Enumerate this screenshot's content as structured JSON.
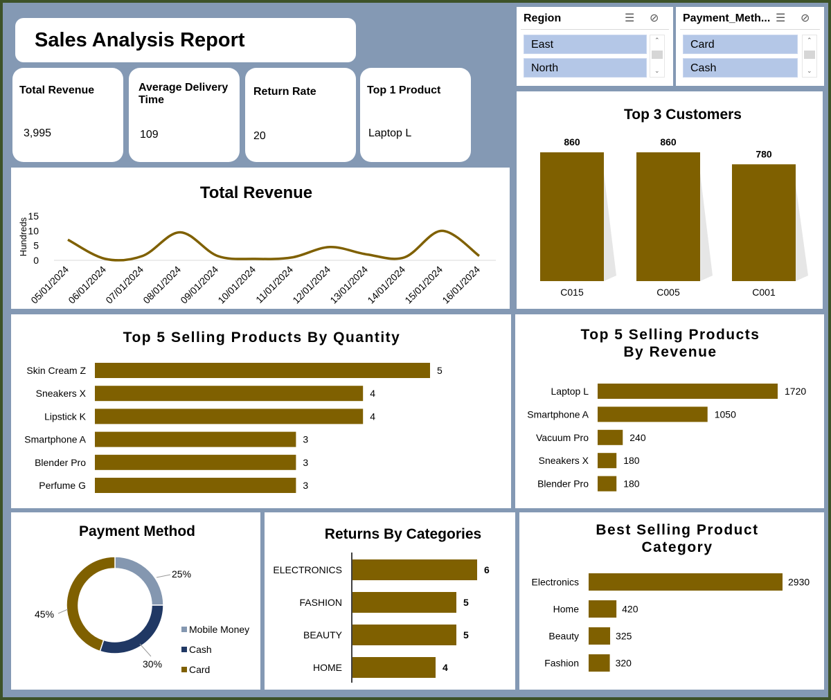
{
  "report_title": "Sales Analysis Report",
  "kpis": [
    {
      "label": "Total Revenue",
      "value": "3,995"
    },
    {
      "label": "Average Delivery Time",
      "value": "109"
    },
    {
      "label": "Return Rate",
      "value": "20"
    },
    {
      "label": "Top 1 Product",
      "value": "Laptop L"
    }
  ],
  "slicers": {
    "region": {
      "header": "Region",
      "items": [
        "East",
        "North"
      ]
    },
    "payment": {
      "header": "Payment_Meth...",
      "items": [
        "Card",
        "Cash"
      ]
    }
  },
  "colors": {
    "bar": "#7f6000",
    "mobile_money": "#8497b0",
    "cash": "#203864",
    "card": "#7f6000",
    "background": "#8499b4"
  },
  "chart_data": [
    {
      "id": "total_revenue",
      "type": "line",
      "title": "Total Revenue",
      "ylabel": "Hundreds",
      "x": [
        "05/01/2024",
        "06/01/2024",
        "07/01/2024",
        "08/01/2024",
        "09/01/2024",
        "10/01/2024",
        "11/01/2024",
        "12/01/2024",
        "13/01/2024",
        "14/01/2024",
        "15/01/2024",
        "16/01/2024"
      ],
      "values": [
        7,
        0.5,
        1.5,
        9.5,
        1.5,
        0.5,
        1,
        4.5,
        2,
        1,
        10,
        1.5
      ],
      "ylim": [
        0,
        15
      ],
      "yticks": [
        0,
        5,
        10,
        15
      ]
    },
    {
      "id": "top3_customers",
      "type": "bar",
      "title": "Top 3 Customers",
      "categories": [
        "C015",
        "C005",
        "C001"
      ],
      "values": [
        860,
        860,
        780
      ]
    },
    {
      "id": "top5_quantity",
      "type": "bar",
      "title": "Top 5 Selling Products By Quantity",
      "categories": [
        "Skin Cream Z",
        "Sneakers X",
        "Lipstick K",
        "Smartphone A",
        "Blender Pro",
        "Perfume G"
      ],
      "values": [
        5,
        4,
        4,
        3,
        3,
        3
      ]
    },
    {
      "id": "top5_revenue",
      "type": "bar",
      "title": "Top 5 Selling Products By Revenue",
      "categories": [
        "Laptop L",
        "Smartphone A",
        "Vacuum Pro",
        "Sneakers X",
        "Blender Pro"
      ],
      "values": [
        1720,
        1050,
        240,
        180,
        180
      ]
    },
    {
      "id": "payment_method",
      "type": "pie",
      "title": "Payment Method",
      "categories": [
        "Mobile Money",
        "Cash",
        "Card"
      ],
      "values": [
        25,
        30,
        45
      ],
      "labels": [
        "25%",
        "30%",
        "45%"
      ]
    },
    {
      "id": "returns_by_categories",
      "type": "bar",
      "title": "Returns By Categories",
      "categories": [
        "ELECTRONICS",
        "FASHION",
        "BEAUTY",
        "HOME"
      ],
      "values": [
        6,
        5,
        5,
        4
      ]
    },
    {
      "id": "best_category",
      "type": "bar",
      "title": "Best Selling Product Category",
      "categories": [
        "Electronics",
        "Home",
        "Beauty",
        "Fashion"
      ],
      "values": [
        2930,
        420,
        325,
        320
      ]
    }
  ]
}
